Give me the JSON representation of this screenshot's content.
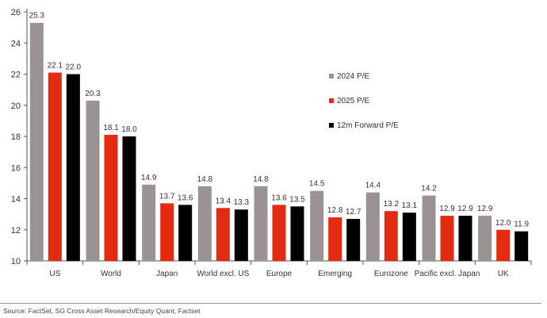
{
  "chart_data": {
    "type": "bar",
    "categories": [
      "US",
      "World",
      "Japan",
      "World excl. US",
      "Europe",
      "Emerging",
      "Eurozone",
      "Pacific excl. Japan",
      "UK"
    ],
    "series": [
      {
        "name": "2024 P/E",
        "color": "#9b9393",
        "values": [
          25.3,
          20.3,
          14.9,
          14.8,
          14.8,
          14.5,
          14.4,
          14.2,
          12.9
        ]
      },
      {
        "name": "2025 P/E",
        "color": "#e32b12",
        "values": [
          22.1,
          18.1,
          13.7,
          13.4,
          13.6,
          12.8,
          13.2,
          12.9,
          12.0
        ]
      },
      {
        "name": "12m Forward P/E",
        "color": "#000000",
        "values": [
          22.0,
          18.0,
          13.6,
          13.3,
          13.5,
          12.7,
          13.1,
          12.9,
          11.9
        ]
      }
    ],
    "ylim": [
      10,
      26
    ],
    "yticks": [
      10,
      12,
      14,
      16,
      18,
      20,
      22,
      24,
      26
    ],
    "grid": false,
    "legend_position": "right"
  },
  "source": "Source: FactSet, SG Cross Asset Research/Equity Quant, Factset"
}
